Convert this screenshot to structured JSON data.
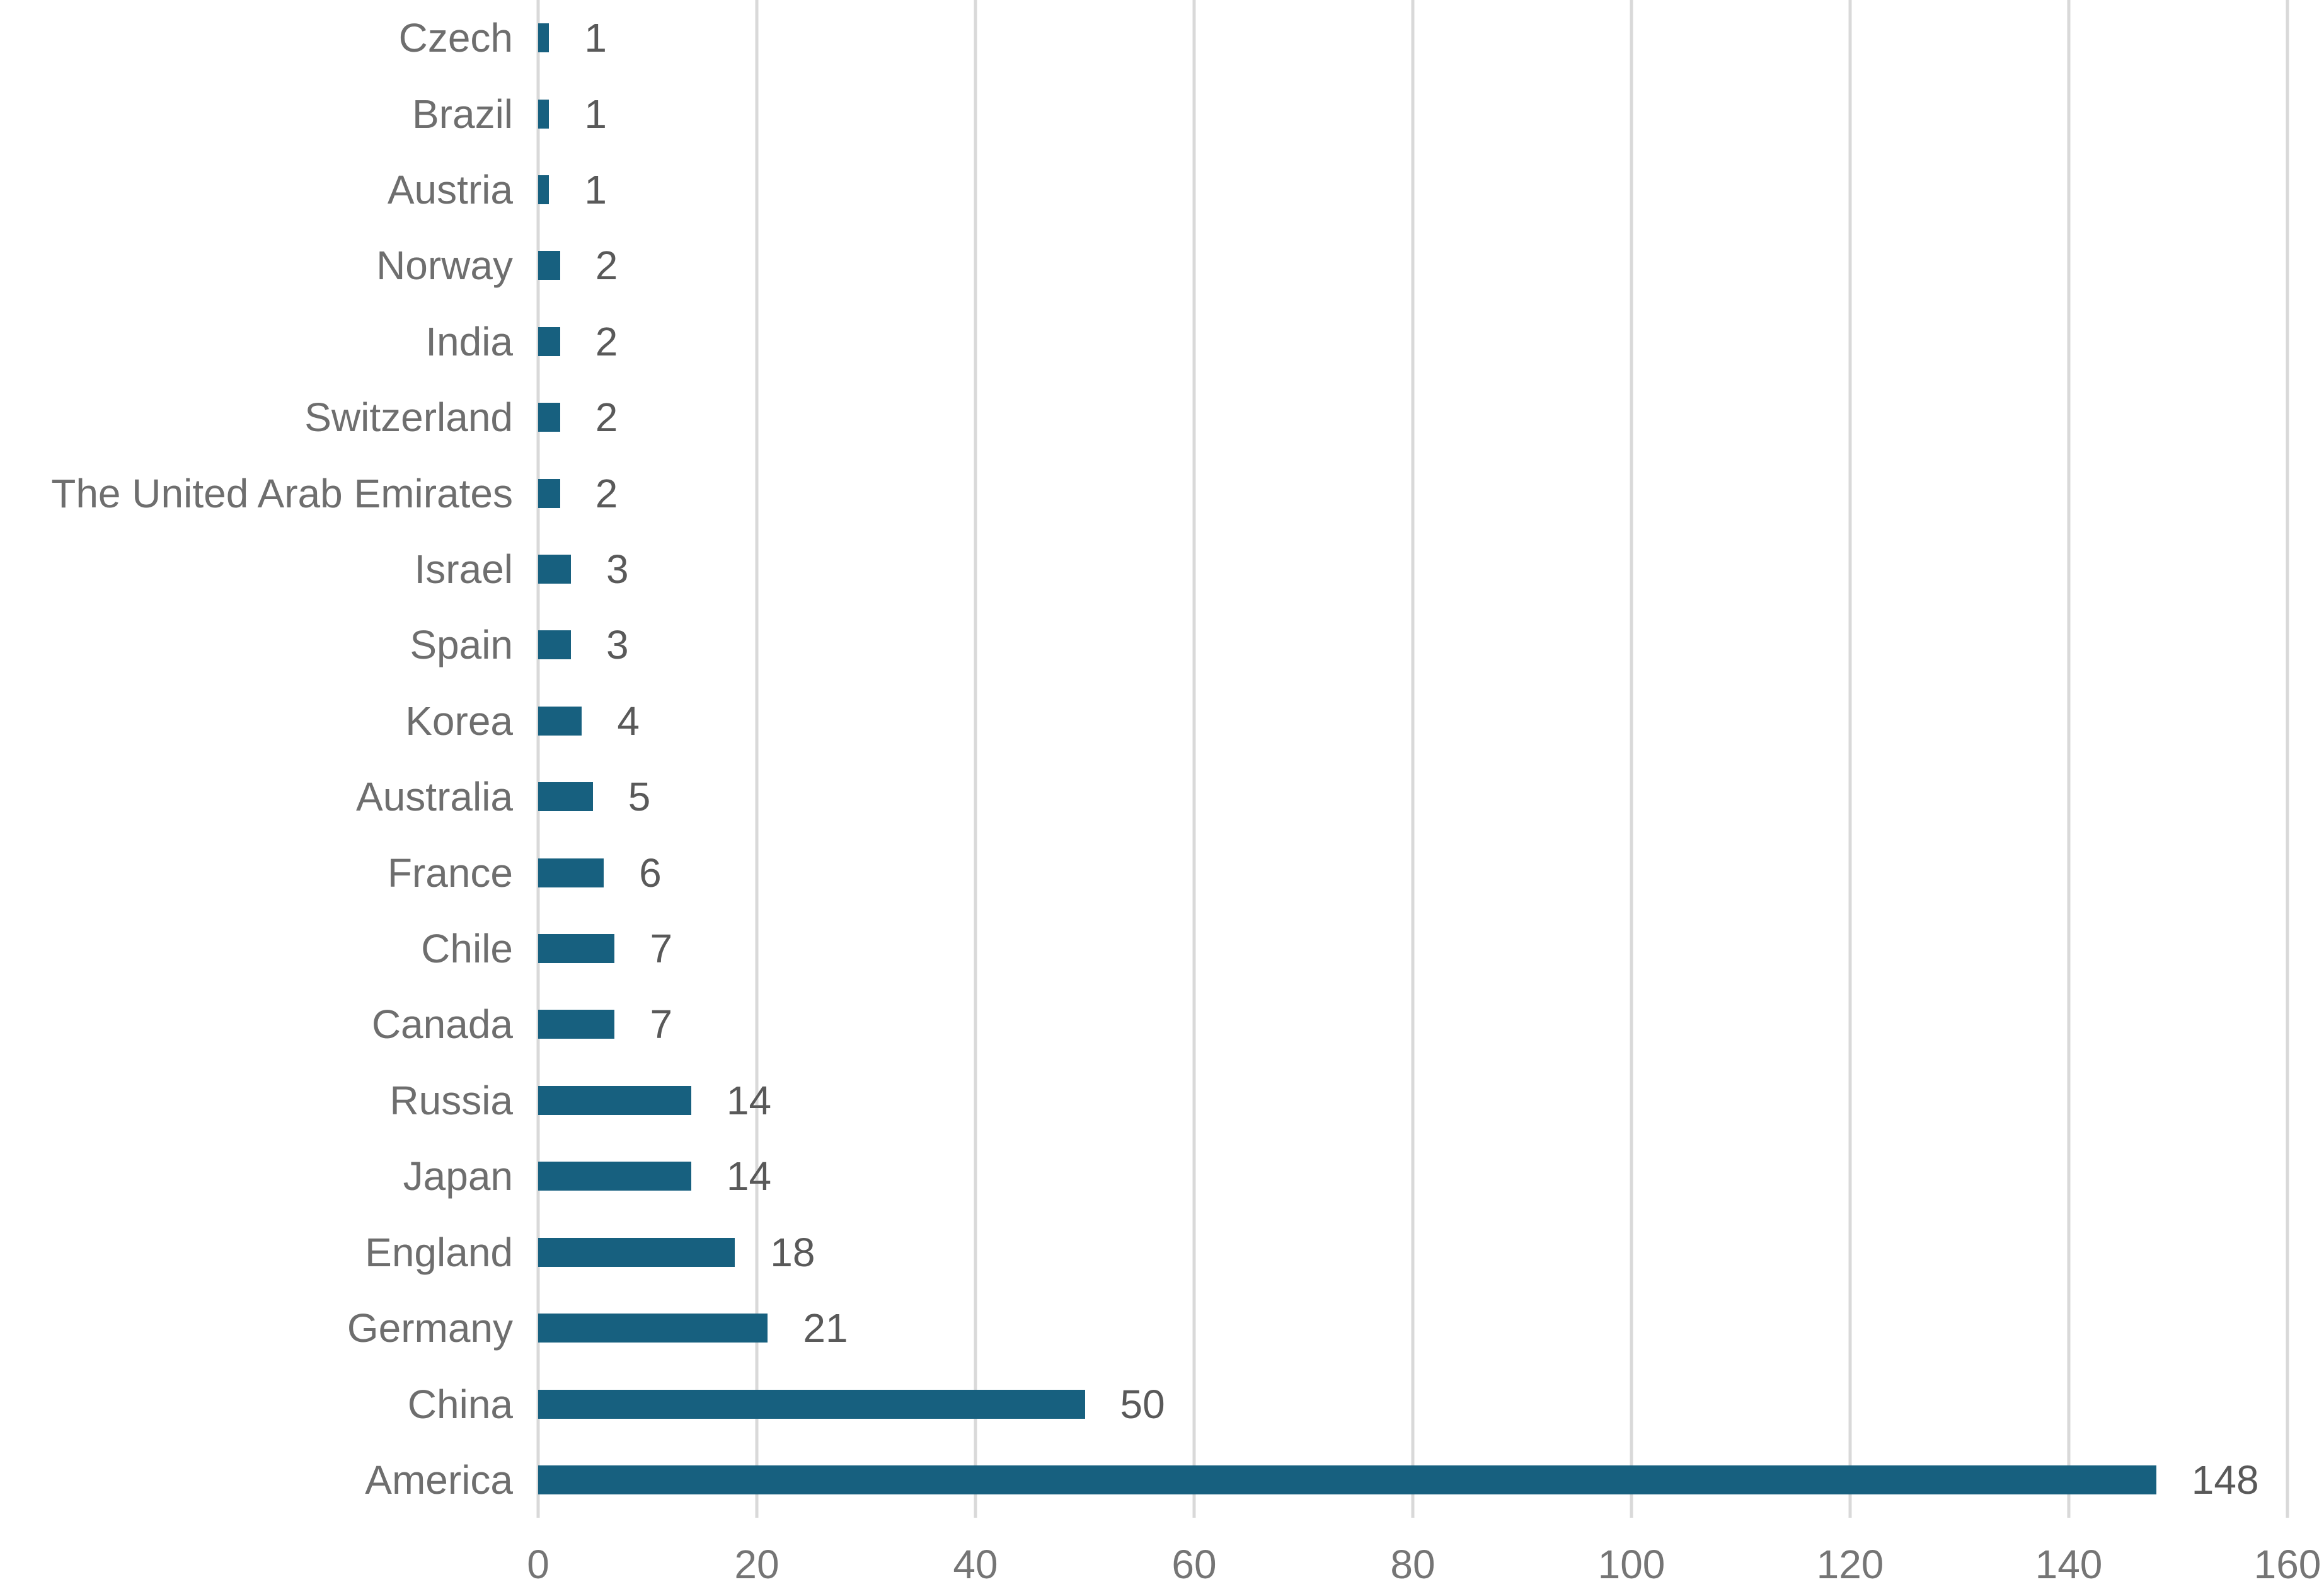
{
  "chart_data": {
    "type": "bar",
    "orientation": "horizontal",
    "title": "",
    "xlabel": "",
    "ylabel": "",
    "categories": [
      "Czech",
      "Brazil",
      "Austria",
      "Norway",
      "India",
      "Switzerland",
      "The United Arab Emirates",
      "Israel",
      "Spain",
      "Korea",
      "Australia",
      "France",
      "Chile",
      "Canada",
      "Russia",
      "Japan",
      "England",
      "Germany",
      "China",
      "America"
    ],
    "values": [
      1,
      1,
      1,
      2,
      2,
      2,
      2,
      3,
      3,
      4,
      5,
      6,
      7,
      7,
      14,
      14,
      18,
      21,
      50,
      148
    ],
    "xlim": [
      0,
      160
    ],
    "x_ticks": [
      0,
      20,
      40,
      60,
      80,
      100,
      120,
      140,
      160
    ],
    "grid": "vertical-only",
    "legend": "none",
    "colors": {
      "bar": "#17607F",
      "gridline": "#D9D9D9",
      "category_label": "#6E6E6E",
      "value_label": "#595959",
      "tick_label": "#757575"
    }
  }
}
